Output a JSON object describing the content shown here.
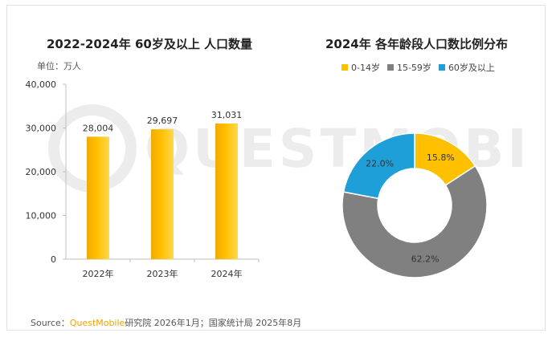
{
  "chart_data": [
    {
      "type": "bar",
      "title": "2022-2024年 60岁及以上 人口数量",
      "unit_label": "单位：万人",
      "categories": [
        "2022年",
        "2023年",
        "2024年"
      ],
      "values": [
        28004,
        29697,
        31031
      ],
      "value_labels": [
        "28,004",
        "29,697",
        "31,031"
      ],
      "ylim": [
        0,
        40000
      ],
      "yticks": [
        "0",
        "10,000",
        "20,000",
        "30,000",
        "40,000"
      ],
      "ytick_values": [
        0,
        10000,
        20000,
        30000,
        40000
      ],
      "grid": false,
      "bar_color": "#ffc000"
    },
    {
      "type": "pie",
      "title": "2024年 各年龄段人口数比例分布",
      "legend_position": "top",
      "slices": [
        {
          "name": "0-14岁",
          "value": 15.8,
          "label": "15.8%",
          "color": "#ffc000"
        },
        {
          "name": "15-59岁",
          "value": 62.2,
          "label": "62.2%",
          "color": "#808080"
        },
        {
          "name": "60岁及以上",
          "value": 22.0,
          "label": "22.0%",
          "color": "#1f9fd8"
        }
      ]
    }
  ],
  "watermark_text": "QUESTMOBILE",
  "source": {
    "prefix": "Source：",
    "brand": "QuestMobile",
    "rest": "研究院 2026年1月；国家统计局 2025年8月"
  }
}
